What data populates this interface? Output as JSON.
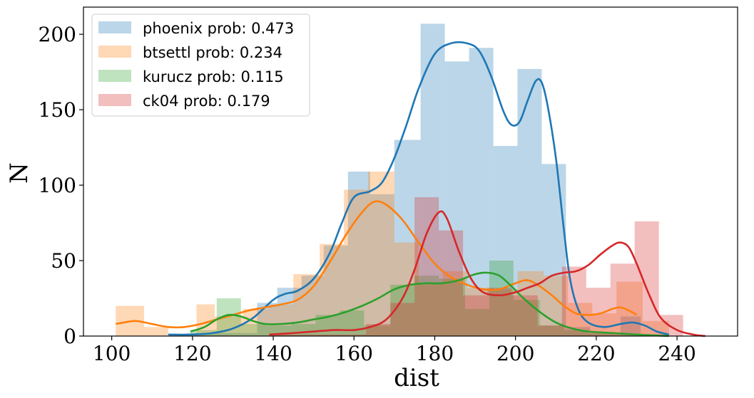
{
  "chart_data": {
    "type": "histogram",
    "title": "",
    "xlabel": "dist",
    "ylabel": "N",
    "xlim": [
      93,
      255
    ],
    "ylim": [
      0,
      218
    ],
    "xticks": [
      100,
      120,
      140,
      160,
      180,
      200,
      220,
      240
    ],
    "yticks": [
      0,
      50,
      100,
      150,
      200
    ],
    "legend_position": "top-left",
    "series": [
      {
        "name": "phoenix prob: 0.473",
        "color": "#1f77b4",
        "bins": [
          {
            "x0": 114.0,
            "x1": 118.5,
            "y": 1
          },
          {
            "x0": 118.5,
            "x1": 136.0,
            "y": 2
          },
          {
            "x0": 136.0,
            "x1": 141.0,
            "y": 22
          },
          {
            "x0": 141.0,
            "x1": 147.0,
            "y": 32
          },
          {
            "x0": 147.0,
            "x1": 152.5,
            "y": 40
          },
          {
            "x0": 152.5,
            "x1": 158.5,
            "y": 60
          },
          {
            "x0": 158.5,
            "x1": 164.0,
            "y": 109
          },
          {
            "x0": 164.0,
            "x1": 170.0,
            "y": 94
          },
          {
            "x0": 170.0,
            "x1": 176.5,
            "y": 130
          },
          {
            "x0": 176.5,
            "x1": 182.5,
            "y": 207
          },
          {
            "x0": 182.5,
            "x1": 188.5,
            "y": 182
          },
          {
            "x0": 188.5,
            "x1": 194.5,
            "y": 191
          },
          {
            "x0": 194.5,
            "x1": 200.5,
            "y": 126
          },
          {
            "x0": 200.5,
            "x1": 206.5,
            "y": 177
          },
          {
            "x0": 206.5,
            "x1": 212.5,
            "y": 114
          },
          {
            "x0": 212.5,
            "x1": 218.5,
            "y": 6
          },
          {
            "x0": 218.5,
            "x1": 226.0,
            "y": 2
          },
          {
            "x0": 226.0,
            "x1": 231.0,
            "y": 13
          },
          {
            "x0": 231.0,
            "x1": 238.0,
            "y": 1
          }
        ],
        "kde": [
          [
            114,
            1
          ],
          [
            120,
            1
          ],
          [
            125,
            2
          ],
          [
            130,
            5
          ],
          [
            135,
            12
          ],
          [
            140,
            24
          ],
          [
            143,
            28
          ],
          [
            146,
            30
          ],
          [
            150,
            38
          ],
          [
            154,
            55
          ],
          [
            157,
            75
          ],
          [
            160,
            92
          ],
          [
            164,
            96
          ],
          [
            167,
            102
          ],
          [
            170,
            118
          ],
          [
            173,
            140
          ],
          [
            176,
            164
          ],
          [
            180,
            187
          ],
          [
            184,
            194
          ],
          [
            188,
            194
          ],
          [
            191,
            189
          ],
          [
            194,
            172
          ],
          [
            197,
            149
          ],
          [
            199,
            140
          ],
          [
            201,
            142
          ],
          [
            203,
            156
          ],
          [
            205,
            169
          ],
          [
            206.5,
            168
          ],
          [
            208,
            152
          ],
          [
            210,
            118
          ],
          [
            212,
            70
          ],
          [
            213.5,
            38
          ],
          [
            215.5,
            18
          ],
          [
            218,
            9
          ],
          [
            222,
            6
          ],
          [
            226,
            8
          ],
          [
            229,
            9
          ],
          [
            232,
            7
          ],
          [
            235,
            3
          ],
          [
            238,
            1
          ]
        ]
      },
      {
        "name": "btsettl prob: 0.234",
        "color": "#ff7f0e",
        "bins": [
          {
            "x0": 101.0,
            "x1": 108.0,
            "y": 20
          },
          {
            "x0": 108.0,
            "x1": 114.0,
            "y": 6
          },
          {
            "x0": 121.0,
            "x1": 125.5,
            "y": 21
          },
          {
            "x0": 125.5,
            "x1": 132.5,
            "y": 13
          },
          {
            "x0": 132.5,
            "x1": 139.0,
            "y": 18
          },
          {
            "x0": 139.0,
            "x1": 145.0,
            "y": 21
          },
          {
            "x0": 145.0,
            "x1": 151.5,
            "y": 41
          },
          {
            "x0": 151.5,
            "x1": 157.5,
            "y": 61
          },
          {
            "x0": 157.5,
            "x1": 163.5,
            "y": 97
          },
          {
            "x0": 163.5,
            "x1": 170.0,
            "y": 109
          },
          {
            "x0": 170.0,
            "x1": 176.0,
            "y": 62
          },
          {
            "x0": 176.0,
            "x1": 182.0,
            "y": 35
          },
          {
            "x0": 182.0,
            "x1": 188.0,
            "y": 43
          },
          {
            "x0": 188.0,
            "x1": 194.5,
            "y": 32
          },
          {
            "x0": 194.5,
            "x1": 200.5,
            "y": 31
          },
          {
            "x0": 200.5,
            "x1": 207.0,
            "y": 43
          },
          {
            "x0": 207.0,
            "x1": 213.0,
            "y": 40
          },
          {
            "x0": 213.0,
            "x1": 219.0,
            "y": 22
          },
          {
            "x0": 219.0,
            "x1": 225.0,
            "y": 15
          },
          {
            "x0": 225.0,
            "x1": 231.5,
            "y": 36
          },
          {
            "x0": 231.5,
            "x1": 238.0,
            "y": 10
          }
        ],
        "kde": [
          [
            101,
            8
          ],
          [
            103,
            9
          ],
          [
            106,
            10
          ],
          [
            110,
            8
          ],
          [
            114,
            6
          ],
          [
            118,
            6
          ],
          [
            122,
            8
          ],
          [
            126,
            11
          ],
          [
            130,
            14
          ],
          [
            134,
            17
          ],
          [
            138,
            19
          ],
          [
            142,
            21
          ],
          [
            146,
            24
          ],
          [
            150,
            33
          ],
          [
            154,
            49
          ],
          [
            158,
            67
          ],
          [
            162,
            82
          ],
          [
            165,
            89
          ],
          [
            168,
            87
          ],
          [
            172,
            77
          ],
          [
            176,
            62
          ],
          [
            180,
            48
          ],
          [
            184,
            39
          ],
          [
            188,
            34
          ],
          [
            192,
            31
          ],
          [
            196,
            31
          ],
          [
            200,
            35
          ],
          [
            203,
            37
          ],
          [
            206,
            33
          ],
          [
            209,
            27
          ],
          [
            212,
            20
          ],
          [
            215,
            15
          ],
          [
            218,
            14
          ],
          [
            221,
            15
          ],
          [
            224,
            18
          ],
          [
            226,
            19
          ],
          [
            228,
            17
          ],
          [
            230,
            14
          ]
        ]
      },
      {
        "name": "kurucz prob: 0.115",
        "color": "#2ca02c",
        "bins": [
          {
            "x0": 119.5,
            "x1": 126.0,
            "y": 4
          },
          {
            "x0": 126.0,
            "x1": 132.0,
            "y": 25
          },
          {
            "x0": 132.0,
            "x1": 138.0,
            "y": 8
          },
          {
            "x0": 138.0,
            "x1": 144.5,
            "y": 7
          },
          {
            "x0": 144.5,
            "x1": 150.5,
            "y": 8
          },
          {
            "x0": 150.5,
            "x1": 156.5,
            "y": 14
          },
          {
            "x0": 156.5,
            "x1": 162.5,
            "y": 17
          },
          {
            "x0": 162.5,
            "x1": 169.0,
            "y": 7
          },
          {
            "x0": 169.0,
            "x1": 175.0,
            "y": 34
          },
          {
            "x0": 175.0,
            "x1": 181.0,
            "y": 40
          },
          {
            "x0": 181.0,
            "x1": 187.5,
            "y": 38
          },
          {
            "x0": 187.5,
            "x1": 193.5,
            "y": 18
          },
          {
            "x0": 193.5,
            "x1": 199.5,
            "y": 50
          },
          {
            "x0": 199.5,
            "x1": 206.0,
            "y": 24
          },
          {
            "x0": 206.0,
            "x1": 212.0,
            "y": 7
          },
          {
            "x0": 212.0,
            "x1": 218.0,
            "y": 4
          },
          {
            "x0": 218.0,
            "x1": 224.5,
            "y": 2
          },
          {
            "x0": 224.5,
            "x1": 231.0,
            "y": 1
          },
          {
            "x0": 231.0,
            "x1": 238.0,
            "y": 1
          }
        ],
        "kde": [
          [
            119.5,
            3
          ],
          [
            123,
            6
          ],
          [
            126,
            11
          ],
          [
            129,
            14
          ],
          [
            132,
            13
          ],
          [
            135,
            10
          ],
          [
            138,
            8
          ],
          [
            142,
            8
          ],
          [
            146,
            9
          ],
          [
            150,
            11
          ],
          [
            154,
            13
          ],
          [
            158,
            16
          ],
          [
            162,
            20
          ],
          [
            166,
            25
          ],
          [
            170,
            31
          ],
          [
            174,
            34
          ],
          [
            178,
            35
          ],
          [
            182,
            35
          ],
          [
            186,
            37
          ],
          [
            190,
            41
          ],
          [
            193,
            42
          ],
          [
            196,
            40
          ],
          [
            199,
            33
          ],
          [
            202,
            25
          ],
          [
            206,
            16
          ],
          [
            210,
            9
          ],
          [
            214,
            5
          ],
          [
            218,
            3
          ],
          [
            224,
            2
          ],
          [
            230,
            1
          ],
          [
            238,
            0
          ]
        ]
      },
      {
        "name": "ck04 prob: 0.179",
        "color": "#d62728",
        "bins": [
          {
            "x0": 139.0,
            "x1": 163.0,
            "y": 1
          },
          {
            "x0": 163.0,
            "x1": 169.0,
            "y": 8
          },
          {
            "x0": 169.0,
            "x1": 175.0,
            "y": 22
          },
          {
            "x0": 175.0,
            "x1": 181.0,
            "y": 92
          },
          {
            "x0": 181.0,
            "x1": 187.0,
            "y": 70
          },
          {
            "x0": 187.0,
            "x1": 193.0,
            "y": 27
          },
          {
            "x0": 193.0,
            "x1": 199.0,
            "y": 32
          },
          {
            "x0": 199.0,
            "x1": 205.5,
            "y": 27
          },
          {
            "x0": 205.5,
            "x1": 211.5,
            "y": 7
          },
          {
            "x0": 211.5,
            "x1": 217.5,
            "y": 46
          },
          {
            "x0": 217.5,
            "x1": 223.5,
            "y": 32
          },
          {
            "x0": 223.5,
            "x1": 229.5,
            "y": 48
          },
          {
            "x0": 229.5,
            "x1": 235.5,
            "y": 76
          },
          {
            "x0": 235.5,
            "x1": 241.5,
            "y": 14
          }
        ],
        "kde": [
          [
            139,
            1
          ],
          [
            145,
            2
          ],
          [
            150,
            3
          ],
          [
            155,
            4
          ],
          [
            160,
            4
          ],
          [
            164,
            6
          ],
          [
            168,
            11
          ],
          [
            172,
            25
          ],
          [
            175,
            44
          ],
          [
            178,
            68
          ],
          [
            181,
            82
          ],
          [
            183,
            78
          ],
          [
            186,
            56
          ],
          [
            189,
            38
          ],
          [
            192,
            29
          ],
          [
            196,
            27
          ],
          [
            200,
            29
          ],
          [
            203,
            32
          ],
          [
            206,
            35
          ],
          [
            209,
            40
          ],
          [
            212,
            42
          ],
          [
            215,
            43
          ],
          [
            218,
            47
          ],
          [
            221,
            54
          ],
          [
            224,
            60
          ],
          [
            226,
            62
          ],
          [
            228,
            59
          ],
          [
            230,
            48
          ],
          [
            233,
            28
          ],
          [
            236,
            12
          ],
          [
            240,
            4
          ],
          [
            244,
            1
          ],
          [
            247,
            0
          ]
        ]
      }
    ]
  }
}
